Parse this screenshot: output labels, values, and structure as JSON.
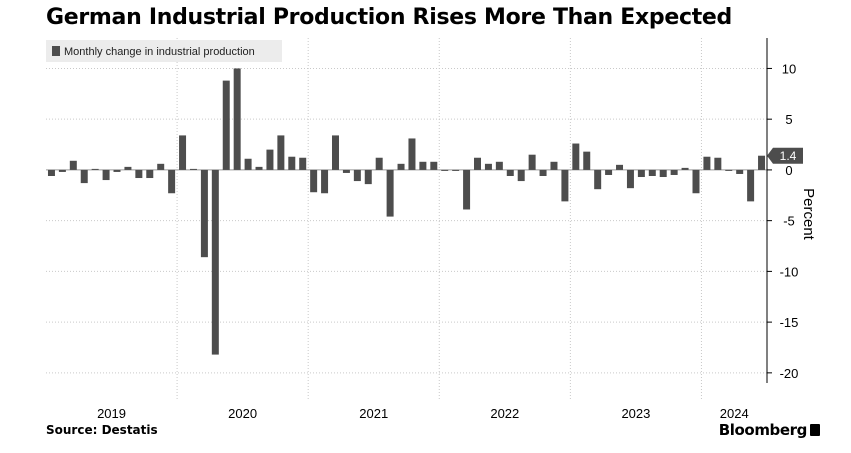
{
  "header": {
    "title": "German Industrial Production Rises More Than Expected"
  },
  "footer": {
    "source": "Source: Destatis",
    "brand": "Bloomberg"
  },
  "chart_data": {
    "type": "bar",
    "legend": {
      "label": "Monthly change in industrial production",
      "placement": "top-left"
    },
    "ylabel": "Percent",
    "ylim": [
      -21,
      13
    ],
    "yticks": [
      10,
      5,
      0,
      -5,
      -10,
      -15,
      -20
    ],
    "ytick_labels": [
      "10",
      "5",
      "0",
      "-5",
      "-10",
      "-15",
      "-20"
    ],
    "grid": true,
    "y_axis_side": "right",
    "last_value_label": "1.4",
    "years": [
      "2019",
      "2020",
      "2021",
      "2022",
      "2023",
      "2024"
    ],
    "x_start": "2019-01",
    "x_end": "2024-07",
    "series": [
      {
        "color": "#4d4d4d",
        "x": [
          "2019-01",
          "2019-02",
          "2019-03",
          "2019-04",
          "2019-05",
          "2019-06",
          "2019-07",
          "2019-08",
          "2019-09",
          "2019-10",
          "2019-11",
          "2019-12",
          "2020-01",
          "2020-02",
          "2020-03",
          "2020-04",
          "2020-05",
          "2020-06",
          "2020-07",
          "2020-08",
          "2020-09",
          "2020-10",
          "2020-11",
          "2020-12",
          "2021-01",
          "2021-02",
          "2021-03",
          "2021-04",
          "2021-05",
          "2021-06",
          "2021-07",
          "2021-08",
          "2021-09",
          "2021-10",
          "2021-11",
          "2021-12",
          "2022-01",
          "2022-02",
          "2022-03",
          "2022-04",
          "2022-05",
          "2022-06",
          "2022-07",
          "2022-08",
          "2022-09",
          "2022-10",
          "2022-11",
          "2022-12",
          "2023-01",
          "2023-02",
          "2023-03",
          "2023-04",
          "2023-05",
          "2023-06",
          "2023-07",
          "2023-08",
          "2023-09",
          "2023-10",
          "2023-11",
          "2023-12",
          "2024-01",
          "2024-02",
          "2024-03",
          "2024-04",
          "2024-05",
          "2024-06"
        ],
        "values": [
          -0.6,
          -0.2,
          0.9,
          -1.3,
          0.1,
          -1.0,
          -0.2,
          0.3,
          -0.8,
          -0.8,
          0.6,
          -2.3,
          3.4,
          0.1,
          -8.6,
          -18.2,
          8.8,
          10.0,
          1.1,
          0.3,
          2.0,
          3.4,
          1.3,
          1.2,
          -2.2,
          -2.3,
          3.4,
          -0.3,
          -1.1,
          -1.4,
          1.2,
          -4.6,
          0.6,
          3.1,
          0.8,
          0.8,
          0.0,
          -0.1,
          -3.9,
          1.2,
          0.6,
          0.8,
          -0.6,
          -1.1,
          1.5,
          -0.6,
          0.8,
          -3.1,
          2.6,
          1.8,
          -1.9,
          -0.5,
          0.5,
          -1.8,
          -0.7,
          -0.6,
          -0.7,
          -0.5,
          0.2,
          -2.3,
          1.3,
          1.2,
          0.0,
          -0.4,
          -3.1,
          1.4
        ]
      }
    ]
  }
}
